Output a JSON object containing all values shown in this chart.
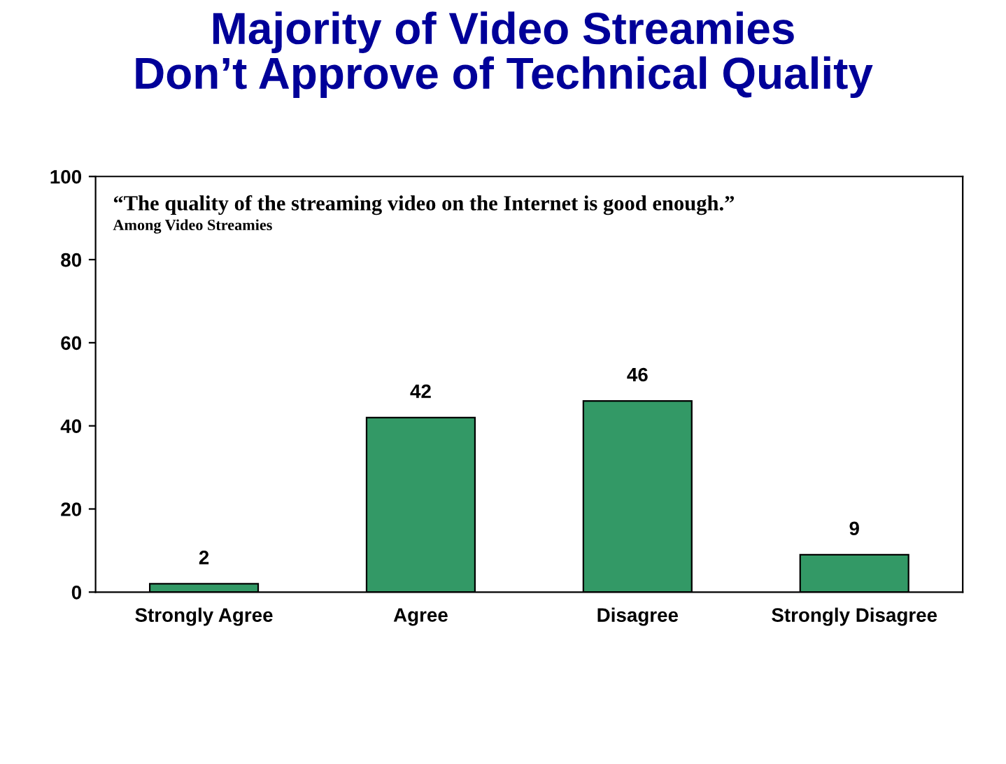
{
  "chart_data": {
    "type": "bar",
    "title": "Majority of Video Streamies\nDon’t Approve of Technical Quality",
    "categories": [
      "Strongly Agree",
      "Agree",
      "Disagree",
      "Strongly Disagree"
    ],
    "values": [
      2,
      42,
      46,
      9
    ],
    "color": "#339966",
    "ylim": [
      0,
      100
    ],
    "yticks": [
      0,
      20,
      40,
      60,
      80,
      100
    ],
    "grid": false,
    "data_labels": true,
    "annotations": [
      "“The quality of the streaming video on the Internet is good enough.”",
      "Among Video Streamies"
    ]
  }
}
